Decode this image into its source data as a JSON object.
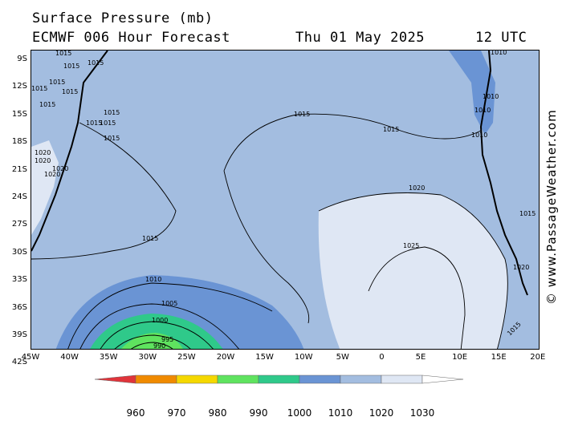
{
  "title": "Surface Pressure (mb)",
  "model": "ECMWF 006 Hour Forecast",
  "date": "Thu 01 May 2025",
  "time": "12 UTC",
  "credit": "© www.PassageWeather.com",
  "axes": {
    "lat_labels": [
      "9S",
      "12S",
      "15S",
      "18S",
      "21S",
      "24S",
      "27S",
      "30S",
      "33S",
      "36S",
      "39S",
      "42S"
    ],
    "lon_labels": [
      "45W",
      "40W",
      "35W",
      "30W",
      "25W",
      "20W",
      "15W",
      "10W",
      "5W",
      "0",
      "5E",
      "10E",
      "15E",
      "20E"
    ]
  },
  "legend": {
    "values": [
      "960",
      "970",
      "980",
      "990",
      "1000",
      "1010",
      "1020",
      "1030"
    ],
    "colors": [
      "#e0343b",
      "#f08a00",
      "#f5d800",
      "#5fe35f",
      "#2fc98a",
      "#6a94d4",
      "#a3bde0",
      "#dfe7f4",
      "#ffffff"
    ]
  },
  "contour_labels": {
    "l1015a": "1015",
    "l1015b": "1015",
    "l1015c": "1015",
    "l1015d": "1015",
    "l1015e": "1015",
    "l1015f": "1015",
    "l1015g": "1015",
    "l1015h": "1015",
    "l1015i": "1015",
    "l1015j": "1015",
    "l1015k": "1015",
    "l1015l": "1015",
    "l1015m": "1015",
    "l1015n": "1015",
    "l1015o": "1015",
    "l1015p": "1015",
    "l1010a": "1010",
    "l1010b": "1010",
    "l1010c": "1010",
    "l1010d": "1010",
    "l1010e": "1010",
    "l1020a": "1020",
    "l1020b": "1020",
    "l1020c": "1020",
    "l1020d": "1020",
    "l1020e": "1020",
    "l1020f": "1020",
    "l1025": "1025",
    "l1005": "1005",
    "l1000": "1000",
    "l995": "995",
    "l990": "990"
  }
}
